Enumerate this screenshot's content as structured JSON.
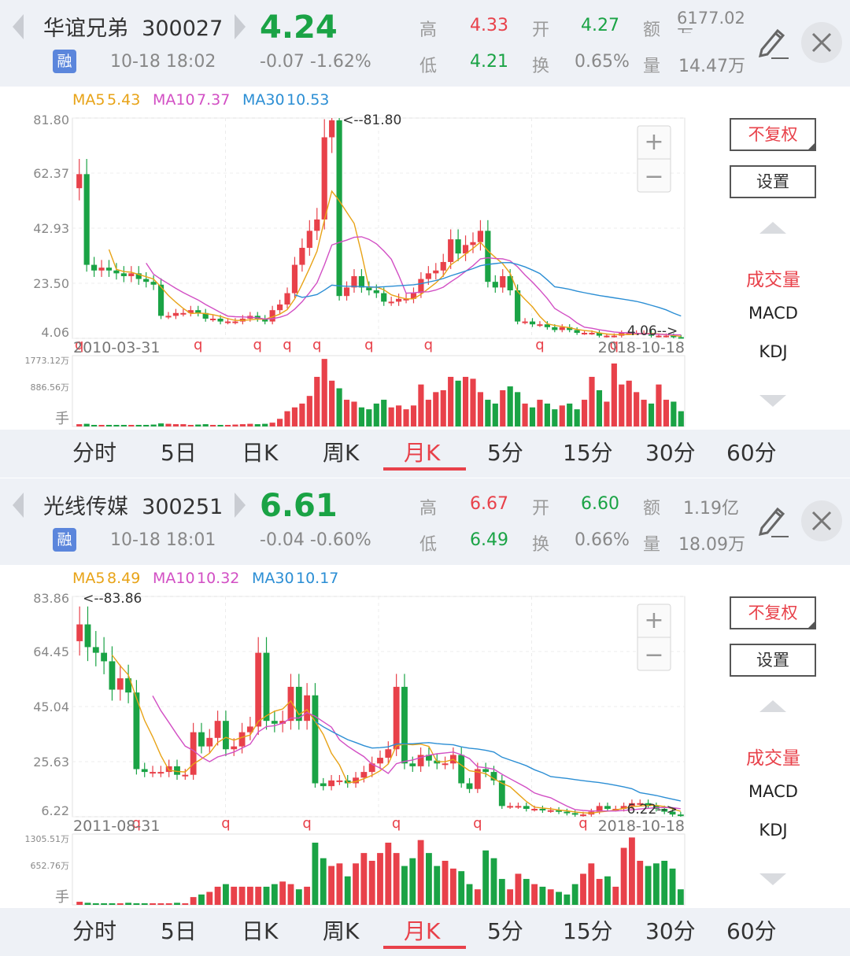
{
  "tabs": [
    "分时",
    "5日",
    "日K",
    "周K",
    "月K",
    "5分",
    "15分",
    "30分",
    "60分"
  ],
  "active_tab": "月K",
  "side": {
    "fuquan_label": "不复权",
    "settings_label": "设置",
    "indicators": [
      "成交量",
      "MACD",
      "KDJ"
    ],
    "zoom_in": "+",
    "zoom_out": "−"
  },
  "colors": {
    "up": "#e8414a",
    "down": "#1aa345",
    "ma5": "#e8a317",
    "ma10": "#d24fc4",
    "ma30": "#2b8ed4"
  },
  "panels": [
    {
      "name": "华谊兄弟",
      "code": "300027",
      "price": "4.24",
      "change": "-0.07  -1.62%",
      "badge": "融",
      "datetime": "10-18 18:02",
      "quote": {
        "high_label": "高",
        "high": "4.33",
        "open_label": "开",
        "open": "4.27",
        "amount_label": "额",
        "amount": "6177.02万",
        "low_label": "低",
        "low": "4.21",
        "turnover_label": "换",
        "turnover": "0.65%",
        "volume_label": "量",
        "volume": "14.47万"
      },
      "chart_data": {
        "type": "candlestick",
        "ma_legend": [
          {
            "label": "MA5",
            "value": "5.43",
            "color": "#e8a317"
          },
          {
            "label": "MA10",
            "value": "7.37",
            "color": "#d24fc4"
          },
          {
            "label": "MA30",
            "value": "10.53",
            "color": "#2b8ed4"
          }
        ],
        "y_ticks": [
          "81.80",
          "62.37",
          "42.93",
          "23.50",
          "4.06"
        ],
        "ylim": [
          4.06,
          81.8
        ],
        "start_date": "2010-03-31",
        "end_date": "2018-10-18",
        "max_label": "<--81.80",
        "max_index": 35,
        "min_label": "4.06-->",
        "q_marks": [
          0,
          16,
          24,
          28,
          32,
          39,
          47,
          62,
          72
        ],
        "volume_ticks": [
          "1773.12万",
          "886.56万",
          "手"
        ],
        "volume_max": 1773.12,
        "closes": [
          62,
          30,
          28,
          29,
          28,
          27,
          26,
          27,
          25,
          24,
          23,
          12,
          12,
          13,
          13,
          14,
          13,
          11,
          11,
          10,
          10,
          10,
          11,
          12,
          11,
          10,
          14,
          16,
          20,
          30,
          36,
          42,
          46,
          75,
          81,
          19,
          22,
          26,
          22,
          21,
          20,
          17,
          17,
          18,
          18,
          20,
          25,
          27,
          28,
          31,
          39,
          34,
          37,
          38,
          42,
          24,
          22,
          26,
          21,
          10,
          10,
          9,
          9,
          8,
          7,
          8,
          7,
          6,
          6,
          6,
          5,
          5,
          5,
          6,
          6,
          6,
          6,
          5,
          5,
          5,
          4.5,
          4.2
        ],
        "volumes": [
          60,
          70,
          40,
          40,
          30,
          35,
          30,
          30,
          40,
          30,
          50,
          80,
          70,
          60,
          60,
          40,
          50,
          60,
          40,
          40,
          40,
          50,
          60,
          70,
          60,
          70,
          100,
          200,
          400,
          500,
          600,
          800,
          1300,
          1770,
          1200,
          1000,
          700,
          650,
          500,
          450,
          600,
          700,
          500,
          550,
          450,
          550,
          1100,
          700,
          900,
          950,
          1300,
          1200,
          1300,
          1250,
          900,
          700,
          600,
          950,
          1050,
          900,
          600,
          500,
          700,
          600,
          450,
          550,
          600,
          450,
          700,
          1300,
          950,
          650,
          1650,
          1100,
          1200,
          900,
          700,
          600,
          1100,
          700,
          650,
          400
        ]
      }
    },
    {
      "name": "光线传媒",
      "code": "300251",
      "price": "6.61",
      "change": "-0.04  -0.60%",
      "badge": "融",
      "datetime": "10-18 18:01",
      "quote": {
        "high_label": "高",
        "high": "6.67",
        "open_label": "开",
        "open": "6.60",
        "amount_label": "额",
        "amount": "1.19亿",
        "low_label": "低",
        "low": "6.49",
        "turnover_label": "换",
        "turnover": "0.66%",
        "volume_label": "量",
        "volume": "18.09万"
      },
      "chart_data": {
        "type": "candlestick",
        "ma_legend": [
          {
            "label": "MA5",
            "value": "8.49",
            "color": "#e8a317"
          },
          {
            "label": "MA10",
            "value": "10.32",
            "color": "#d24fc4"
          },
          {
            "label": "MA30",
            "value": "10.17",
            "color": "#2b8ed4"
          }
        ],
        "y_ticks": [
          "83.86",
          "64.45",
          "45.04",
          "25.63",
          "6.22"
        ],
        "ylim": [
          6.22,
          83.86
        ],
        "start_date": "2011-08-31",
        "end_date": "2018-10-18",
        "max_label": "<--83.86",
        "max_index": 0,
        "min_label": "6.22-->",
        "q_marks": [
          7,
          18,
          28,
          39,
          49,
          62
        ],
        "volume_ticks": [
          "1305.51万",
          "652.76万",
          "手"
        ],
        "volume_max": 1305.51,
        "closes": [
          74,
          66,
          64,
          61,
          51,
          55,
          50,
          23,
          22,
          22,
          22,
          24,
          21,
          21,
          36,
          31,
          34,
          40,
          30,
          31,
          36,
          38,
          64,
          40,
          39,
          40,
          52,
          40,
          49,
          18,
          17,
          19,
          19,
          18,
          20,
          22,
          25,
          27,
          30,
          52,
          25,
          24,
          28,
          26,
          25,
          25,
          28,
          18,
          16,
          23,
          22,
          19,
          10,
          10,
          10,
          9,
          9,
          8.5,
          8.5,
          8,
          7.5,
          7,
          7,
          8,
          10,
          9,
          9,
          10,
          11,
          11,
          10,
          9,
          8,
          7,
          6.6
        ],
        "volumes": [
          60,
          40,
          30,
          30,
          30,
          30,
          40,
          30,
          30,
          30,
          30,
          30,
          40,
          30,
          150,
          200,
          250,
          350,
          400,
          350,
          350,
          350,
          350,
          350,
          400,
          450,
          400,
          300,
          350,
          1200,
          900,
          750,
          800,
          550,
          800,
          1000,
          850,
          1000,
          1200,
          1000,
          750,
          900,
          1250,
          1000,
          750,
          850,
          700,
          650,
          400,
          300,
          1050,
          900,
          500,
          300,
          600,
          500,
          400,
          350,
          300,
          250,
          200,
          400,
          600,
          800,
          500,
          550,
          350,
          1100,
          1300,
          850,
          750,
          800,
          850,
          700,
          300
        ]
      }
    }
  ]
}
